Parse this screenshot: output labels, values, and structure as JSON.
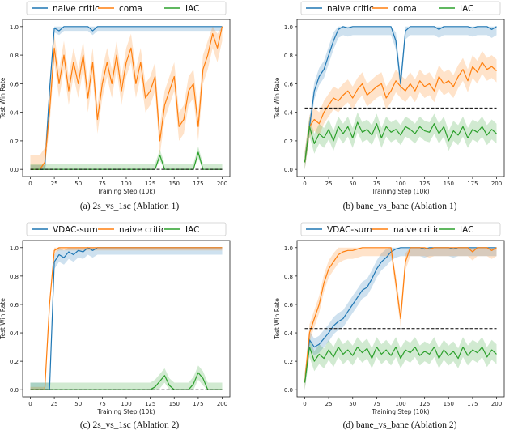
{
  "colors": {
    "blue": "#1f77b4",
    "orange": "#ff7f0e",
    "green": "#2ca02c",
    "baseline": "#000000"
  },
  "chart_data": [
    {
      "type": "line",
      "caption": "(a) 2s_vs_1sc (Ablation 1)",
      "xlabel": "Training Step (10k)",
      "ylabel": "Test Win Rate",
      "xlim": [
        -8,
        208
      ],
      "ylim": [
        -0.05,
        1.05
      ],
      "xticks": [
        "0",
        "25",
        "50",
        "75",
        "100",
        "125",
        "150",
        "175",
        "200"
      ],
      "yticks": [
        "0.0",
        "0.2",
        "0.4",
        "0.6",
        "0.8",
        "1.0"
      ],
      "legend": "top",
      "baseline": {
        "y": 0.0,
        "style": "dashed"
      },
      "x": [
        0,
        5,
        10,
        15,
        20,
        25,
        30,
        35,
        40,
        45,
        50,
        55,
        60,
        65,
        70,
        75,
        80,
        85,
        90,
        95,
        100,
        105,
        110,
        115,
        120,
        125,
        130,
        135,
        140,
        145,
        150,
        155,
        160,
        165,
        170,
        175,
        180,
        185,
        190,
        195,
        200
      ],
      "series": [
        {
          "name": "naive critic",
          "color": "blue",
          "values": [
            0,
            0,
            0,
            0,
            0.55,
            0.99,
            0.97,
            1,
            1,
            1,
            1,
            1,
            1,
            0.97,
            1,
            1,
            1,
            1,
            1,
            1,
            1,
            1,
            1,
            1,
            1,
            1,
            1,
            1,
            1,
            1,
            1,
            1,
            1,
            1,
            1,
            1,
            1,
            1,
            1,
            1,
            1
          ],
          "band": 0.03
        },
        {
          "name": "coma",
          "color": "orange",
          "values": [
            0,
            0,
            0,
            0.05,
            0.4,
            0.85,
            0.6,
            0.8,
            0.55,
            0.75,
            0.6,
            0.8,
            0.5,
            0.75,
            0.35,
            0.6,
            0.75,
            0.6,
            0.8,
            0.55,
            0.75,
            0.85,
            0.6,
            0.75,
            0.5,
            0.55,
            0.65,
            0.2,
            0.45,
            0.55,
            0.65,
            0.3,
            0.35,
            0.55,
            0.6,
            0.3,
            0.7,
            0.8,
            0.95,
            0.85,
            1.0
          ],
          "band": 0.1
        },
        {
          "name": "IAC",
          "color": "green",
          "values": [
            0,
            0,
            0,
            0,
            0,
            0,
            0,
            0,
            0,
            0,
            0,
            0,
            0,
            0,
            0,
            0,
            0,
            0,
            0,
            0,
            0,
            0,
            0,
            0,
            0,
            0,
            0,
            0.1,
            0,
            0,
            0,
            0,
            0,
            0,
            0,
            0.12,
            0,
            0,
            0,
            0,
            0
          ],
          "band": 0.04
        }
      ]
    },
    {
      "type": "line",
      "caption": "(b) bane_vs_bane (Ablation 1)",
      "xlabel": "Training Step (10k)",
      "ylabel": "Test Win Rate",
      "xlim": [
        -8,
        208
      ],
      "ylim": [
        -0.05,
        1.05
      ],
      "xticks": [
        "0",
        "25",
        "50",
        "75",
        "100",
        "125",
        "150",
        "175",
        "200"
      ],
      "yticks": [
        "0.0",
        "0.2",
        "0.4",
        "0.6",
        "0.8",
        "1.0"
      ],
      "legend": "top",
      "baseline": {
        "y": 0.43,
        "style": "dashed"
      },
      "x": [
        0,
        5,
        10,
        15,
        20,
        25,
        30,
        35,
        40,
        45,
        50,
        55,
        60,
        65,
        70,
        75,
        80,
        85,
        90,
        95,
        100,
        105,
        110,
        115,
        120,
        125,
        130,
        135,
        140,
        145,
        150,
        155,
        160,
        165,
        170,
        175,
        180,
        185,
        190,
        195,
        200
      ],
      "series": [
        {
          "name": "naive critic",
          "color": "blue",
          "values": [
            0.05,
            0.3,
            0.55,
            0.65,
            0.7,
            0.8,
            0.9,
            0.98,
            1,
            0.99,
            1,
            1,
            1,
            1,
            1,
            1,
            1,
            1,
            1,
            0.9,
            0.6,
            0.97,
            1,
            1,
            1,
            1,
            1,
            1,
            0.98,
            1,
            1,
            1,
            1,
            1,
            1,
            0.99,
            1,
            1,
            1,
            0.98,
            1
          ],
          "band": 0.06
        },
        {
          "name": "coma",
          "color": "orange",
          "values": [
            0.05,
            0.3,
            0.35,
            0.32,
            0.4,
            0.45,
            0.5,
            0.48,
            0.52,
            0.55,
            0.5,
            0.56,
            0.6,
            0.52,
            0.55,
            0.58,
            0.6,
            0.5,
            0.55,
            0.62,
            0.58,
            0.55,
            0.6,
            0.55,
            0.62,
            0.58,
            0.6,
            0.55,
            0.65,
            0.6,
            0.62,
            0.58,
            0.65,
            0.7,
            0.62,
            0.72,
            0.68,
            0.75,
            0.7,
            0.72,
            0.69
          ],
          "band": 0.08
        },
        {
          "name": "IAC",
          "color": "green",
          "values": [
            0.05,
            0.3,
            0.18,
            0.25,
            0.22,
            0.28,
            0.2,
            0.3,
            0.25,
            0.3,
            0.22,
            0.33,
            0.26,
            0.28,
            0.24,
            0.32,
            0.22,
            0.3,
            0.26,
            0.28,
            0.24,
            0.3,
            0.28,
            0.25,
            0.3,
            0.27,
            0.26,
            0.32,
            0.25,
            0.3,
            0.2,
            0.27,
            0.24,
            0.3,
            0.22,
            0.28,
            0.26,
            0.3,
            0.24,
            0.28,
            0.25
          ],
          "band": 0.07
        }
      ]
    },
    {
      "type": "line",
      "caption": "(c) 2s_vs_1sc (Ablation 2)",
      "xlabel": "Training Step (10k)",
      "ylabel": "Test Win Rate",
      "xlim": [
        -8,
        208
      ],
      "ylim": [
        -0.05,
        1.05
      ],
      "xticks": [
        "0",
        "25",
        "50",
        "75",
        "100",
        "125",
        "150",
        "175",
        "200"
      ],
      "yticks": [
        "0.0",
        "0.2",
        "0.4",
        "0.6",
        "0.8",
        "1.0"
      ],
      "legend": "top",
      "baseline": {
        "y": 0.0,
        "style": "dashed"
      },
      "x": [
        0,
        5,
        10,
        15,
        20,
        25,
        30,
        35,
        40,
        45,
        50,
        55,
        60,
        65,
        70,
        75,
        80,
        85,
        90,
        95,
        100,
        105,
        110,
        115,
        120,
        125,
        130,
        135,
        140,
        145,
        150,
        155,
        160,
        165,
        170,
        175,
        180,
        185,
        190,
        195,
        200
      ],
      "series": [
        {
          "name": "VDAC-sum",
          "color": "blue",
          "values": [
            0,
            0,
            0,
            0,
            0,
            0.9,
            0.95,
            0.93,
            0.97,
            0.95,
            0.98,
            0.97,
            1,
            0.98,
            1,
            1,
            1,
            1,
            1,
            1,
            1,
            1,
            1,
            1,
            1,
            1,
            1,
            1,
            1,
            1,
            1,
            1,
            1,
            1,
            1,
            1,
            1,
            1,
            1,
            1,
            1
          ],
          "band": 0.05
        },
        {
          "name": "naive critic",
          "color": "orange",
          "values": [
            0,
            0,
            0,
            0,
            0.6,
            0.98,
            1,
            1,
            1,
            1,
            1,
            1,
            1,
            1,
            1,
            1,
            1,
            1,
            1,
            1,
            1,
            1,
            1,
            1,
            1,
            1,
            1,
            1,
            1,
            1,
            1,
            1,
            1,
            1,
            1,
            1,
            1,
            1,
            1,
            1,
            1
          ],
          "band": 0.02
        },
        {
          "name": "IAC",
          "color": "green",
          "values": [
            0,
            0,
            0,
            0,
            0,
            0,
            0,
            0,
            0,
            0,
            0,
            0,
            0,
            0,
            0,
            0,
            0,
            0,
            0,
            0,
            0,
            0,
            0,
            0,
            0,
            0,
            0.02,
            0.06,
            0.1,
            0.03,
            0,
            0,
            0,
            0,
            0.04,
            0.12,
            0.08,
            0,
            0,
            0,
            0
          ],
          "band": 0.05
        }
      ]
    },
    {
      "type": "line",
      "caption": "(d) bane_vs_bane (Ablation 2)",
      "xlabel": "Training Step (10k)",
      "ylabel": "Test Win Rate",
      "xlim": [
        -8,
        208
      ],
      "ylim": [
        -0.05,
        1.05
      ],
      "xticks": [
        "0",
        "25",
        "50",
        "75",
        "100",
        "125",
        "150",
        "175",
        "200"
      ],
      "yticks": [
        "0.0",
        "0.2",
        "0.4",
        "0.6",
        "0.8",
        "1.0"
      ],
      "legend": "top",
      "baseline": {
        "y": 0.43,
        "style": "dashed"
      },
      "x": [
        0,
        5,
        10,
        15,
        20,
        25,
        30,
        35,
        40,
        45,
        50,
        55,
        60,
        65,
        70,
        75,
        80,
        85,
        90,
        95,
        100,
        105,
        110,
        115,
        120,
        125,
        130,
        135,
        140,
        145,
        150,
        155,
        160,
        165,
        170,
        175,
        180,
        185,
        190,
        195,
        200
      ],
      "series": [
        {
          "name": "VDAC-sum",
          "color": "blue",
          "values": [
            0.05,
            0.35,
            0.3,
            0.32,
            0.36,
            0.4,
            0.45,
            0.48,
            0.5,
            0.55,
            0.6,
            0.65,
            0.7,
            0.72,
            0.78,
            0.85,
            0.9,
            0.93,
            0.97,
            0.99,
            1,
            1,
            1,
            1,
            1,
            0.99,
            1,
            1,
            1,
            1,
            1,
            0.99,
            1,
            1,
            1,
            1,
            1,
            1,
            1,
            1,
            1
          ],
          "band": 0.06
        },
        {
          "name": "naive critic",
          "color": "orange",
          "values": [
            0.05,
            0.4,
            0.5,
            0.6,
            0.75,
            0.85,
            0.9,
            0.95,
            0.97,
            0.98,
            0.98,
            0.99,
            1,
            1,
            1,
            1,
            1,
            1,
            1,
            0.75,
            0.5,
            0.9,
            1,
            1,
            1,
            1,
            0.99,
            1,
            1,
            1,
            1,
            1,
            1,
            1,
            1,
            0.97,
            1,
            1,
            1,
            0.98,
            1
          ],
          "band": 0.06
        },
        {
          "name": "IAC",
          "color": "green",
          "values": [
            0.05,
            0.3,
            0.2,
            0.25,
            0.22,
            0.28,
            0.23,
            0.3,
            0.25,
            0.28,
            0.24,
            0.3,
            0.26,
            0.29,
            0.22,
            0.3,
            0.25,
            0.28,
            0.24,
            0.3,
            0.22,
            0.28,
            0.26,
            0.3,
            0.24,
            0.27,
            0.25,
            0.3,
            0.22,
            0.28,
            0.24,
            0.27,
            0.22,
            0.3,
            0.24,
            0.28,
            0.26,
            0.3,
            0.23,
            0.28,
            0.25
          ],
          "band": 0.07
        }
      ]
    }
  ]
}
